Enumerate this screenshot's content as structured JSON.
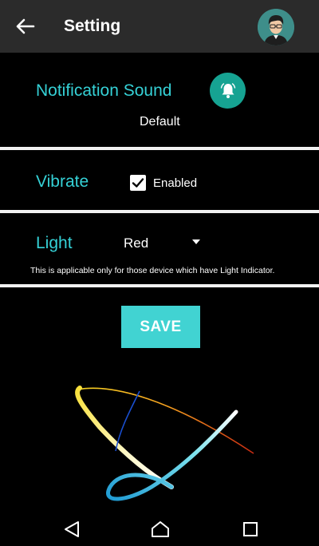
{
  "appbar": {
    "title": "Setting",
    "back_icon": "arrow-back-icon",
    "avatar_icon": "user-avatar-icon"
  },
  "notification": {
    "label": "Notification Sound",
    "value": "Default",
    "icon": "bell-icon"
  },
  "vibrate": {
    "label": "Vibrate",
    "checkbox_label": "Enabled",
    "checked": true
  },
  "light": {
    "label": "Light",
    "selected": "Red",
    "note": "This is applicable only for those device which have Light Indicator."
  },
  "actions": {
    "save_label": "SAVE"
  },
  "navbar": {
    "back_icon": "nav-back-icon",
    "home_icon": "nav-home-icon",
    "recents_icon": "nav-recents-icon"
  },
  "colors": {
    "accent": "#35d1d6",
    "save_button": "#41d3d2",
    "bell_button": "#16a392",
    "appbar": "#2b2b2b"
  }
}
